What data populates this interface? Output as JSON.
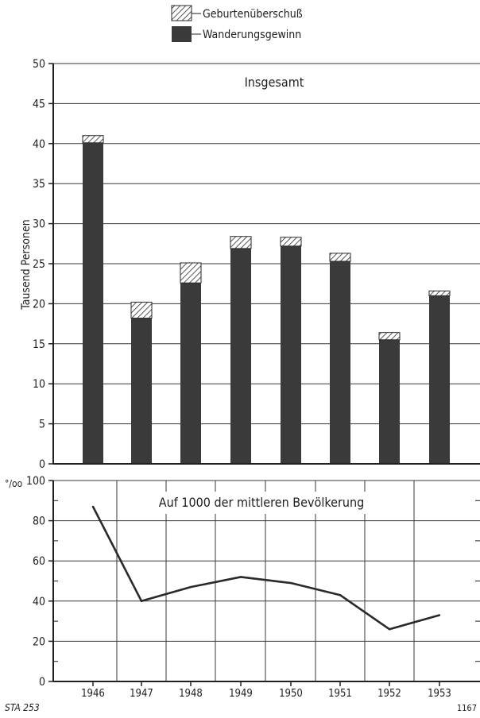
{
  "legend": {
    "surplus_label": "Geburtenüberschuß",
    "migration_label": "Wanderungsgewinn"
  },
  "top_chart": {
    "title": "Insgesamt",
    "ylabel": "Tausend Personen",
    "yticks": [
      "0",
      "5",
      "10",
      "15",
      "20",
      "25",
      "30",
      "35",
      "40",
      "45",
      "50"
    ]
  },
  "bottom_chart": {
    "title": "Auf 1000 der mittleren Bevölkerung",
    "unit_label": "°/oo",
    "yticks": [
      "0",
      "20",
      "40",
      "60",
      "80",
      "100"
    ]
  },
  "xticks": [
    "1946",
    "1947",
    "1948",
    "1949",
    "1950",
    "1951",
    "1952",
    "1953"
  ],
  "footer": {
    "left": "STA 253",
    "right": "1167"
  },
  "colors": {
    "dark": "#3a3a3a",
    "line": "#2a2a2a"
  },
  "chart_data": [
    {
      "type": "bar",
      "title": "Insgesamt",
      "ylabel": "Tausend Personen",
      "categories": [
        "1946",
        "1947",
        "1948",
        "1949",
        "1950",
        "1951",
        "1952",
        "1953"
      ],
      "stacked": true,
      "ylim": [
        0,
        50
      ],
      "grid": true,
      "series": [
        {
          "name": "Wanderungsgewinn",
          "values": [
            40.1,
            18.2,
            22.6,
            26.9,
            27.2,
            25.3,
            15.5,
            21.0
          ]
        },
        {
          "name": "Geburtenüberschuß",
          "values": [
            0.9,
            2.0,
            2.5,
            1.5,
            1.1,
            1.0,
            0.9,
            0.6
          ]
        }
      ],
      "legend_position": "top-center"
    },
    {
      "type": "line",
      "title": "Auf 1000 der mittleren Bevölkerung",
      "x": [
        "1946",
        "1947",
        "1948",
        "1949",
        "1950",
        "1951",
        "1952",
        "1953"
      ],
      "ylim": [
        0,
        100
      ],
      "grid": true,
      "values": [
        87,
        40,
        47,
        52,
        49,
        43,
        26,
        33
      ]
    }
  ]
}
